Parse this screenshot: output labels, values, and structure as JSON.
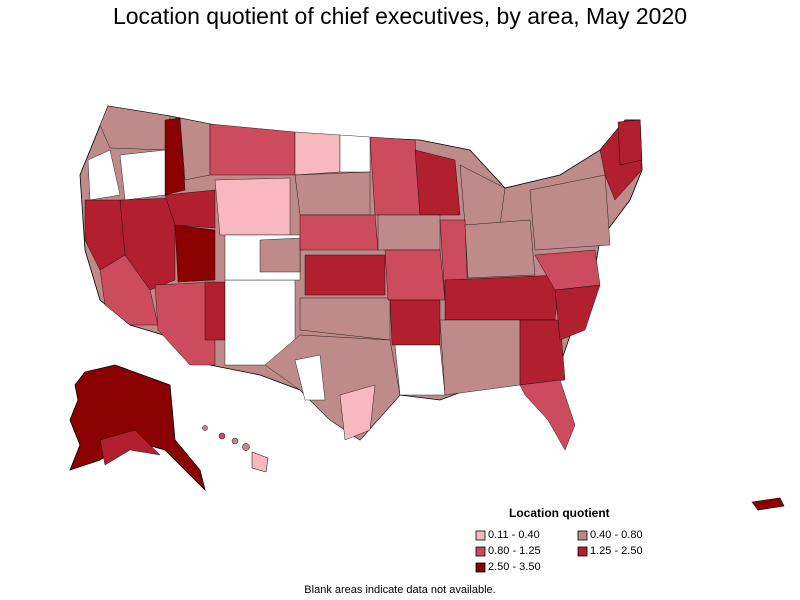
{
  "title": "Location quotient of chief executives, by area, May 2020",
  "legend": {
    "title": "Location quotient",
    "items": [
      {
        "label": "0.11 - 0.40",
        "color": "#f8b8c0"
      },
      {
        "label": "0.40 - 0.80",
        "color": "#bf8a8a"
      },
      {
        "label": "0.80 - 1.25",
        "color": "#cc4c5e"
      },
      {
        "label": "1.25 - 2.50",
        "color": "#b22030"
      },
      {
        "label": "2.50 - 3.50",
        "color": "#8b0000"
      }
    ]
  },
  "footnote": "Blank areas indicate data not available."
}
